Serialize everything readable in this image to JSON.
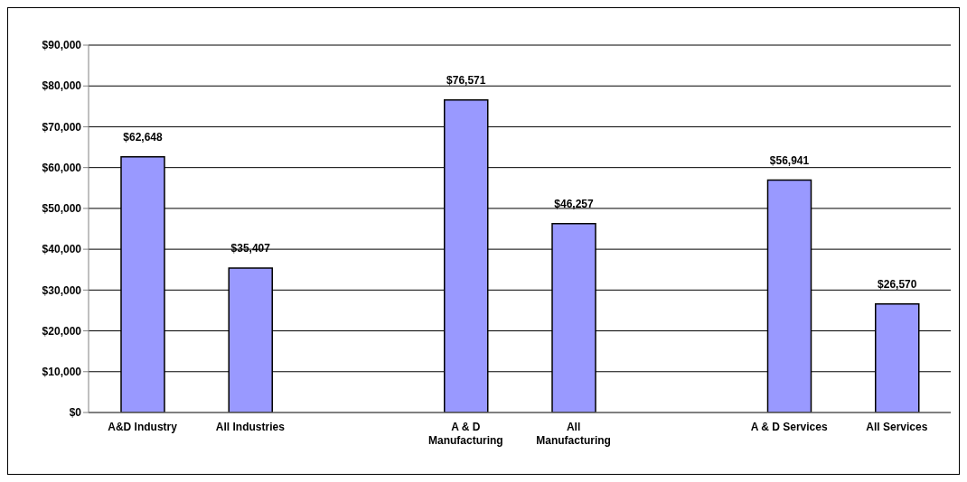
{
  "chart_data": {
    "type": "bar",
    "categories": [
      "A&D Industry",
      "All Industries",
      null,
      "A & D Manufacturing",
      "All Manufacturing",
      null,
      "A & D Services",
      "All Services"
    ],
    "values": [
      62648,
      35407,
      null,
      76571,
      46257,
      null,
      56941,
      26570
    ],
    "color": "#9999ff",
    "ylim": [
      0,
      90000
    ],
    "yticks": [
      {
        "value": 0,
        "label": "$0"
      },
      {
        "value": 10000,
        "label": "$10,000"
      },
      {
        "value": 20000,
        "label": "$20,000"
      },
      {
        "value": 30000,
        "label": "$30,000"
      },
      {
        "value": 40000,
        "label": "$40,000"
      },
      {
        "value": 50000,
        "label": "$50,000"
      },
      {
        "value": 60000,
        "label": "$60,000"
      },
      {
        "value": 70000,
        "label": "$70,000"
      },
      {
        "value": 80000,
        "label": "$80,000"
      },
      {
        "value": 90000,
        "label": "$90,000"
      }
    ],
    "value_labels": [
      "$62,648",
      "$35,407",
      null,
      "$76,571",
      "$46,257",
      null,
      "$56,941",
      "$26,570"
    ],
    "grid": "y"
  }
}
